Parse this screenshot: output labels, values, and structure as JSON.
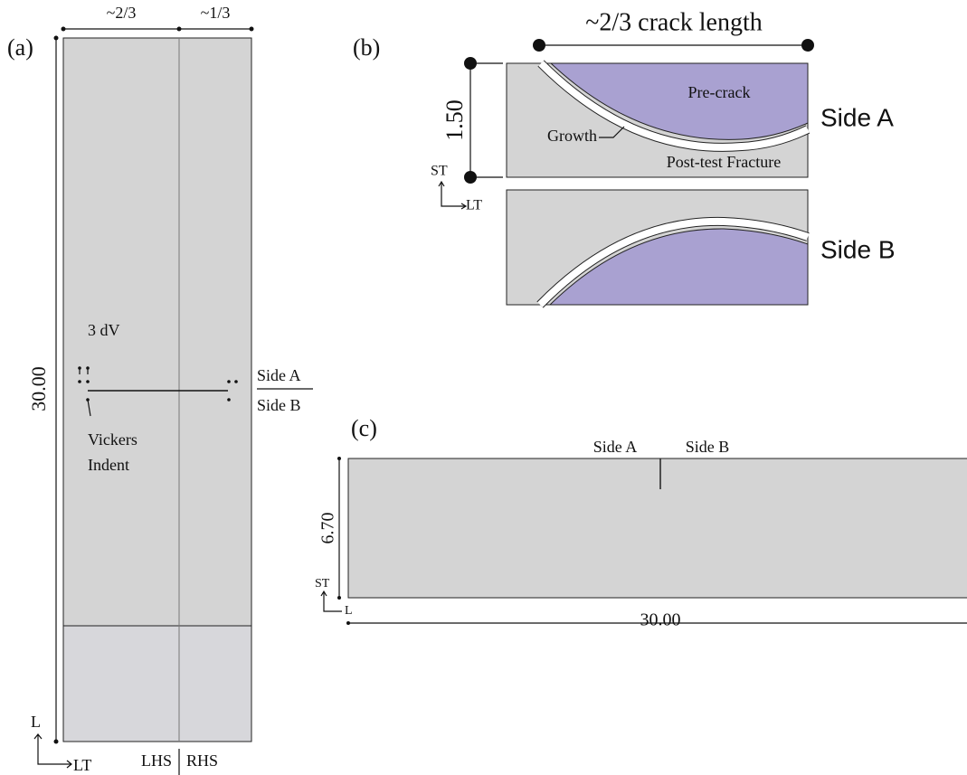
{
  "panel_a": {
    "label": "(a)",
    "width_left": "~2/3",
    "width_right": "~1/3",
    "length": "30.00",
    "dv_label": "3 dV",
    "indent_label": [
      "Vickers",
      "Indent"
    ],
    "side_a": "Side A",
    "side_b": "Side B",
    "axis_vertical": "L",
    "axis_horizontal": "LT",
    "lhs": "LHS",
    "rhs": "RHS"
  },
  "panel_b": {
    "label": "(b)",
    "title": "~2/3 crack length",
    "thickness": "1.50",
    "precrack": "Pre-crack",
    "growth": "Growth",
    "fracture": "Post-test Fracture",
    "side_a": "Side A",
    "side_b": "Side B",
    "axis_vertical": "ST",
    "axis_horizontal": "LT"
  },
  "panel_c": {
    "label": "(c)",
    "side_a": "Side A",
    "side_b": "Side B",
    "thickness": "6.70",
    "length": "30.00",
    "axis_vertical": "ST",
    "axis_horizontal": "L"
  }
}
